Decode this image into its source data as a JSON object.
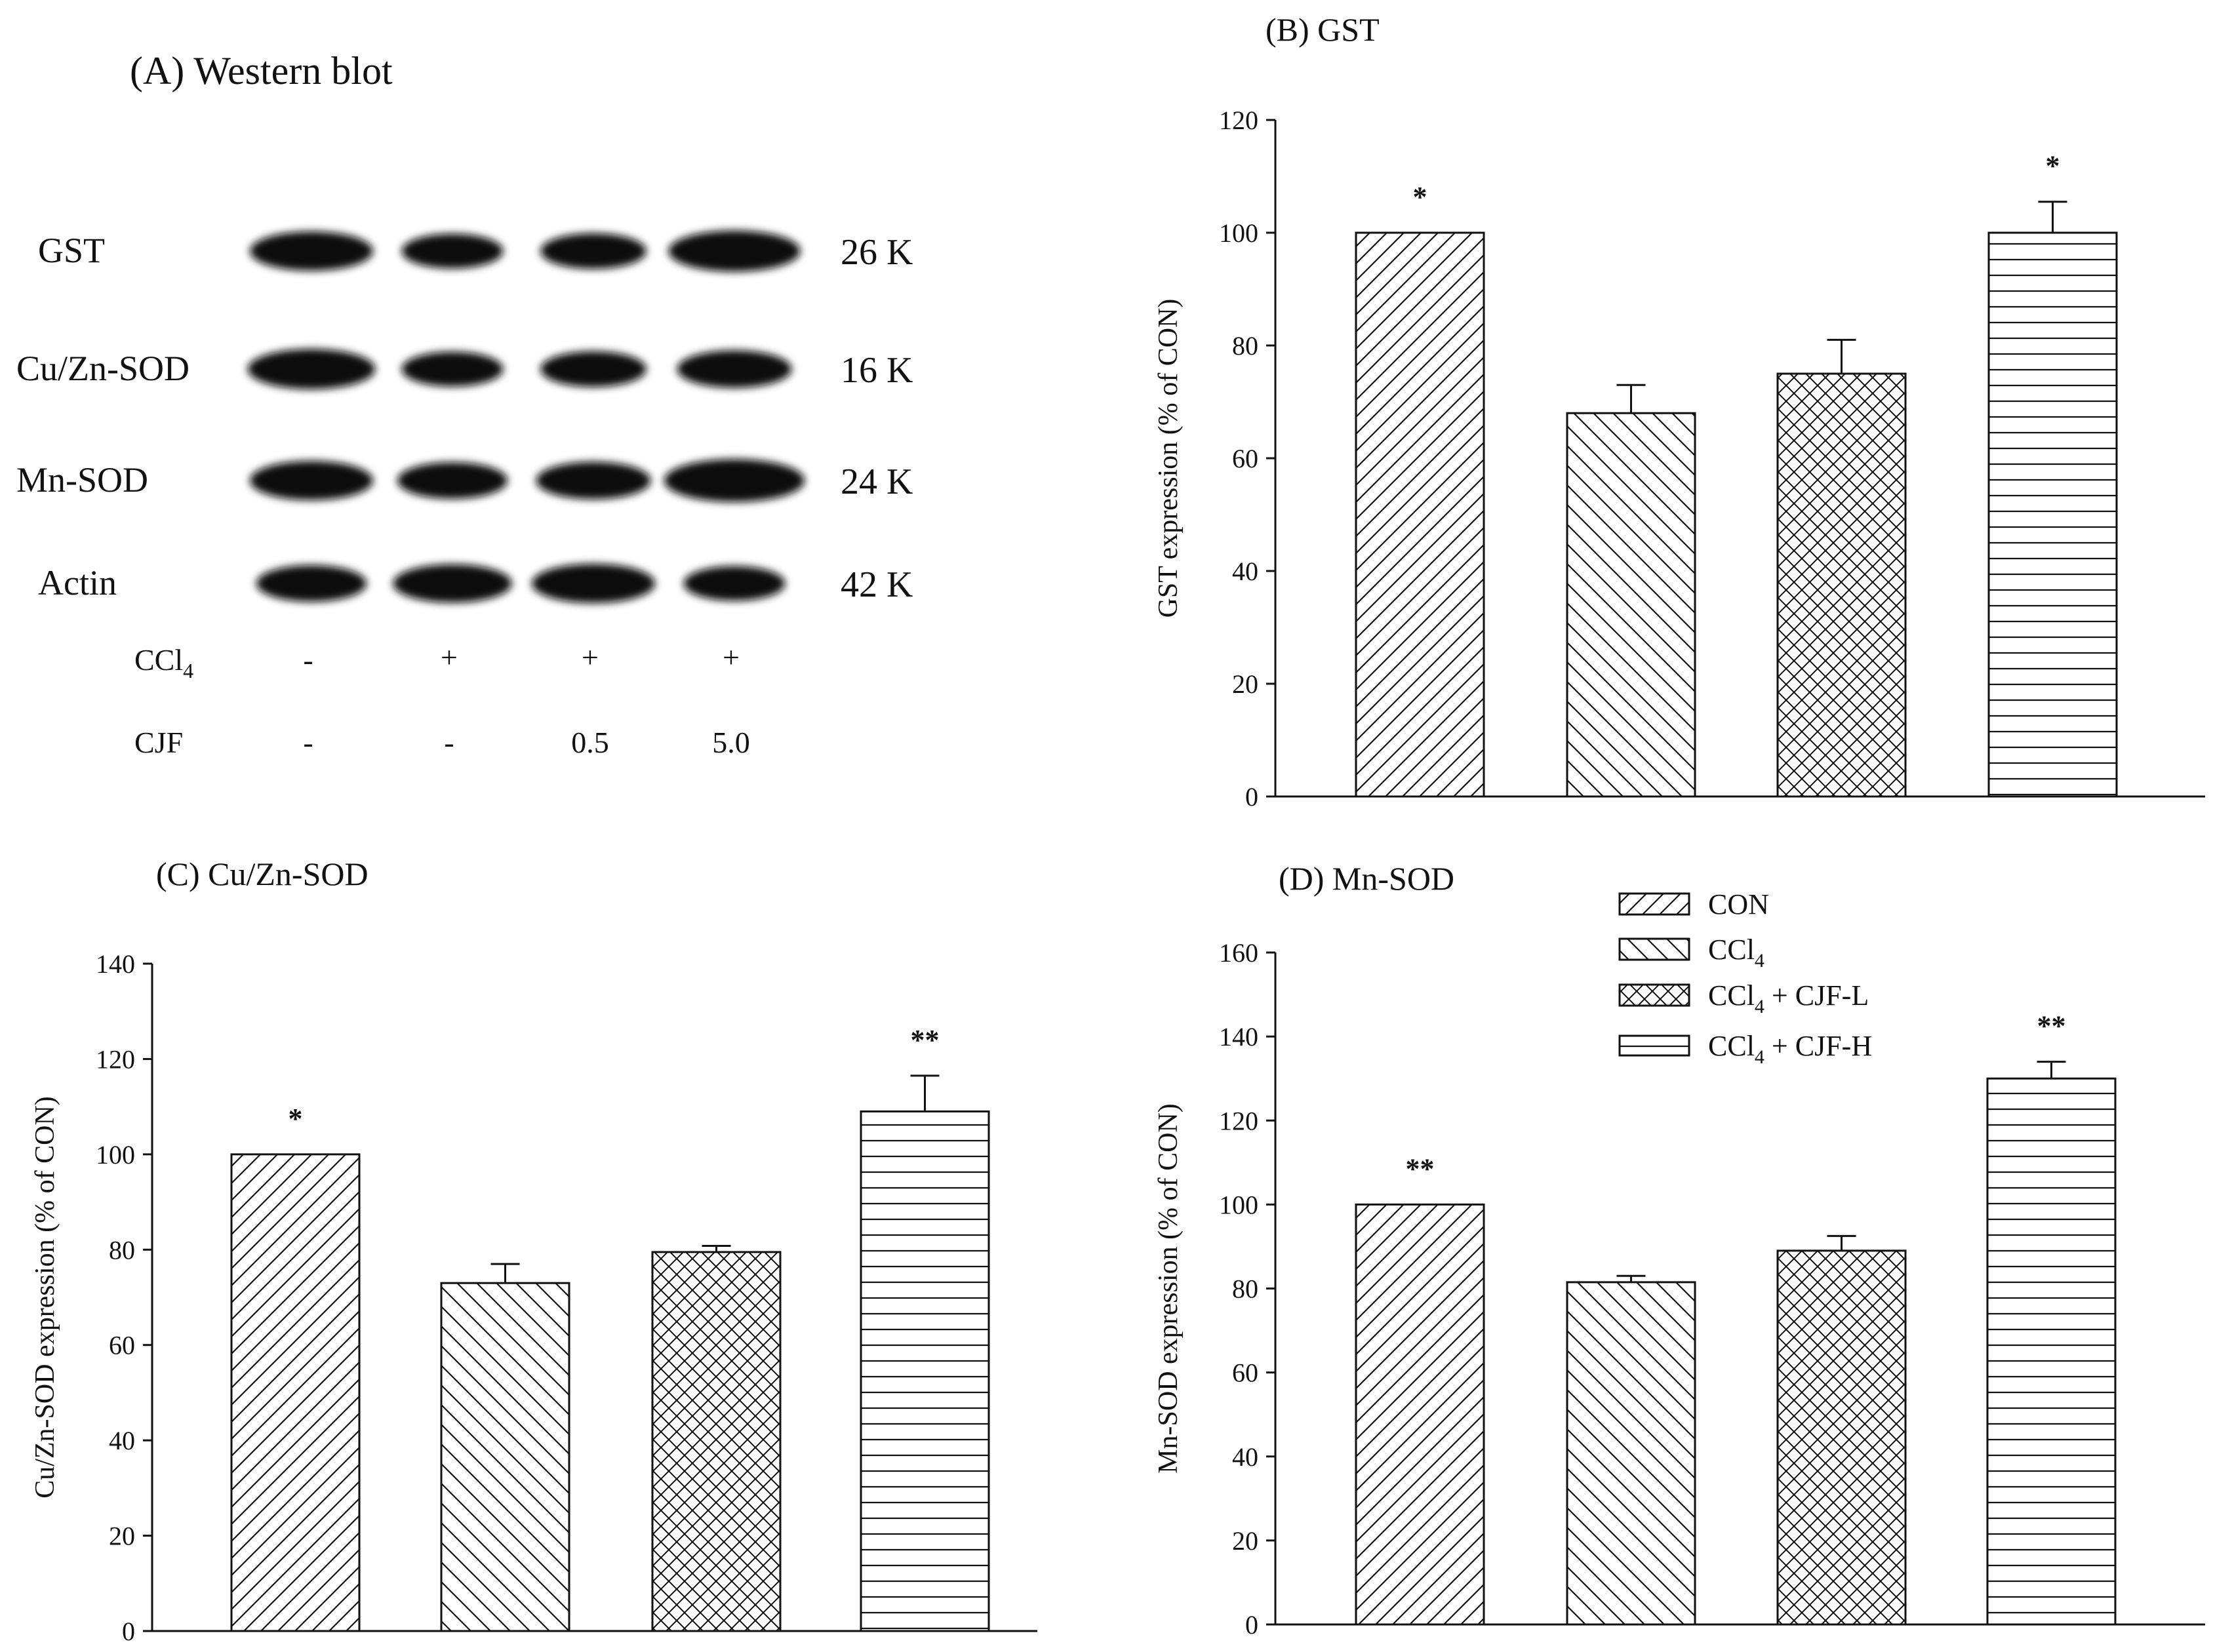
{
  "western_blot": {
    "title": "(A) Western blot",
    "bands": [
      {
        "name": "GST",
        "size": "26 K",
        "intensity": [
          1.0,
          0.75,
          0.8,
          1.1
        ]
      },
      {
        "name": "Cu/Zn-SOD",
        "size": "16 K",
        "intensity": [
          1.05,
          0.75,
          0.8,
          0.9
        ]
      },
      {
        "name": "Mn-SOD",
        "size": "24 K",
        "intensity": [
          1.0,
          0.85,
          0.9,
          1.2
        ]
      },
      {
        "name": "Actin",
        "size": "42 K",
        "intensity": [
          0.85,
          0.95,
          1.0,
          0.75
        ]
      }
    ],
    "treatments": [
      {
        "label": "CCl",
        "sub": "4",
        "values": [
          "-",
          "+",
          "+",
          "+"
        ]
      },
      {
        "label": "CJF",
        "sub": "",
        "values": [
          "-",
          "-",
          "0.5",
          "5.0"
        ]
      }
    ]
  },
  "legend": [
    {
      "label": "CON",
      "sub": "",
      "suffix": "",
      "pattern": "diag-right"
    },
    {
      "label": "CCl",
      "sub": "4",
      "suffix": "",
      "pattern": "diag-left"
    },
    {
      "label": "CCl",
      "sub": "4",
      "suffix": " + CJF-L",
      "pattern": "cross"
    },
    {
      "label": "CCl",
      "sub": "4",
      "suffix": " + CJF-H",
      "pattern": "horiz"
    }
  ],
  "chart_data": [
    {
      "panel": "B",
      "type": "bar",
      "title": "(B) GST",
      "categories": [
        "CON",
        "CCl4",
        "CCl4 + CJF-L",
        "CCl4 + CJF-H"
      ],
      "values": [
        100,
        68,
        75,
        100
      ],
      "errors": [
        0,
        5,
        6,
        5.5
      ],
      "significance": [
        "*",
        "",
        "",
        "*"
      ],
      "xlabel": "",
      "ylabel": "GST expression (% of CON)",
      "ylim": [
        0,
        120
      ],
      "yticks": [
        0,
        20,
        40,
        60,
        80,
        100,
        120
      ]
    },
    {
      "panel": "C",
      "type": "bar",
      "title": "(C) Cu/Zn-SOD",
      "categories": [
        "CON",
        "CCl4",
        "CCl4 + CJF-L",
        "CCl4 + CJF-H"
      ],
      "values": [
        100,
        73,
        79.5,
        109
      ],
      "errors": [
        0,
        4,
        1.3,
        7.5
      ],
      "significance": [
        "*",
        "",
        "",
        "**"
      ],
      "xlabel": "",
      "ylabel": "Cu/Zn-SOD expression (% of CON)",
      "ylim": [
        0,
        140
      ],
      "yticks": [
        0,
        20,
        40,
        60,
        80,
        100,
        120,
        140
      ]
    },
    {
      "panel": "D",
      "type": "bar",
      "title": "(D) Mn-SOD",
      "categories": [
        "CON",
        "CCl4",
        "CCl4 + CJF-L",
        "CCl4 + CJF-H"
      ],
      "values": [
        100,
        81.5,
        89,
        130
      ],
      "errors": [
        0,
        1.5,
        3.5,
        4
      ],
      "significance": [
        "**",
        "",
        "",
        "**"
      ],
      "xlabel": "",
      "ylabel": "Mn-SOD expression (% of CON)",
      "ylim": [
        0,
        160
      ],
      "yticks": [
        0,
        20,
        40,
        60,
        80,
        100,
        120,
        140,
        160
      ]
    }
  ]
}
